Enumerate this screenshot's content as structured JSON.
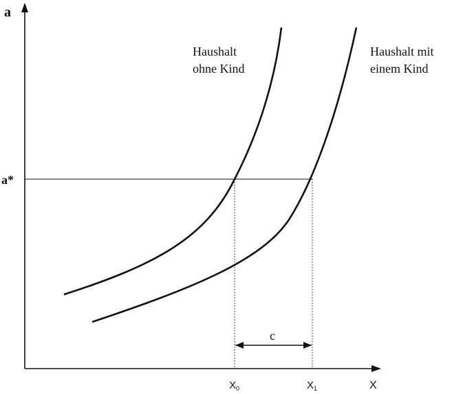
{
  "axes": {
    "y_label": "a",
    "x_label": "X",
    "a_star_label": "a*"
  },
  "curves": {
    "ohne_kind_line1": "Haushalt",
    "ohne_kind_line2": "ohne Kind",
    "mit_kind_line1": "Haushalt mit",
    "mit_kind_line2": "einem Kind"
  },
  "markers": {
    "x0_main": "X",
    "x0_sub": "0",
    "x1_main": "X",
    "x1_sub": "1",
    "c_label": "c"
  }
}
